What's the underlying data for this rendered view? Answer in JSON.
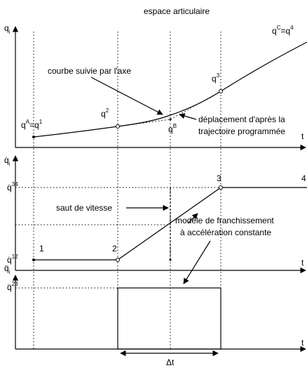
{
  "title": "espace articulaire",
  "axes": {
    "position": [
      {
        "t": "q",
        "s": ""
      },
      {
        "t": "i",
        "s": "sub"
      }
    ],
    "velocity": [
      {
        "t": "q̇",
        "s": ""
      },
      {
        "t": "i",
        "s": "sub"
      }
    ],
    "acceleration": [
      {
        "t": "q̈",
        "s": ""
      },
      {
        "t": "i",
        "s": "sub"
      }
    ],
    "time_label": "t"
  },
  "points": {
    "A": [
      {
        "t": "q",
        "s": ""
      },
      {
        "t": "A",
        "s": "sup"
      },
      {
        "t": "=q",
        "s": ""
      },
      {
        "t": "1",
        "s": "sup"
      }
    ],
    "p2": [
      {
        "t": "q",
        "s": ""
      },
      {
        "t": "2",
        "s": "sup"
      }
    ],
    "p3": [
      {
        "t": "q",
        "s": ""
      },
      {
        "t": "3",
        "s": "sup"
      }
    ],
    "B": [
      {
        "t": "q",
        "s": ""
      },
      {
        "t": "B",
        "s": "sup"
      }
    ],
    "C": [
      {
        "t": "q",
        "s": ""
      },
      {
        "t": "C",
        "s": "sup"
      },
      {
        "t": "=q",
        "s": ""
      },
      {
        "t": "4",
        "s": "sup"
      }
    ]
  },
  "velocity_levels": {
    "v34": [
      {
        "t": "q̇",
        "s": ""
      },
      {
        "t": "34",
        "s": "sup"
      }
    ],
    "v12": [
      {
        "t": "q̇",
        "s": ""
      },
      {
        "t": "12",
        "s": "sup"
      }
    ]
  },
  "acceleration_level": [
    {
      "t": "q̈",
      "s": ""
    },
    {
      "t": "23",
      "s": "sup"
    }
  ],
  "annotations": {
    "followed_curve": "courbe suivie par l'axe",
    "programmed": [
      "déplacement d'après la",
      "trajectoire programmée"
    ],
    "speed_jump": "saut de vitesse",
    "model": [
      "modèle de franchissement",
      "à accélération constante"
    ]
  },
  "segment_numbers": [
    "1",
    "2",
    "3",
    "4"
  ],
  "delta_t": "Δt"
}
